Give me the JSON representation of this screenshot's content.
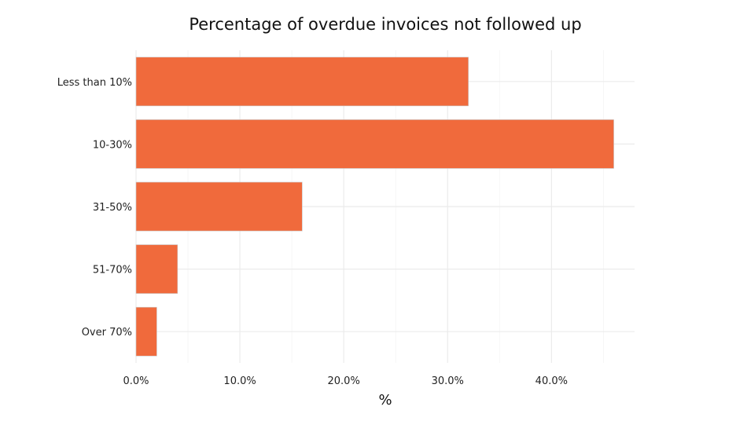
{
  "chart_data": {
    "type": "bar",
    "orientation": "horizontal",
    "title": "Percentage of overdue invoices not followed up",
    "xlabel": "%",
    "ylabel": "",
    "categories": [
      "Less than 10%",
      "10-30%",
      "31-50%",
      "51-70%",
      "Over 70%"
    ],
    "values": [
      32.0,
      46.0,
      16.0,
      4.0,
      2.0
    ],
    "xlim": [
      0,
      48
    ],
    "x_ticks": [
      0,
      10,
      20,
      30,
      40
    ],
    "x_tick_labels": [
      "0.0%",
      "10.0%",
      "20.0%",
      "30.0%",
      "40.0%"
    ],
    "grid": true,
    "legend": "none",
    "colors": {
      "bar": "#F06A3C",
      "grid": "#EBEBEB",
      "text": "#222222"
    }
  }
}
